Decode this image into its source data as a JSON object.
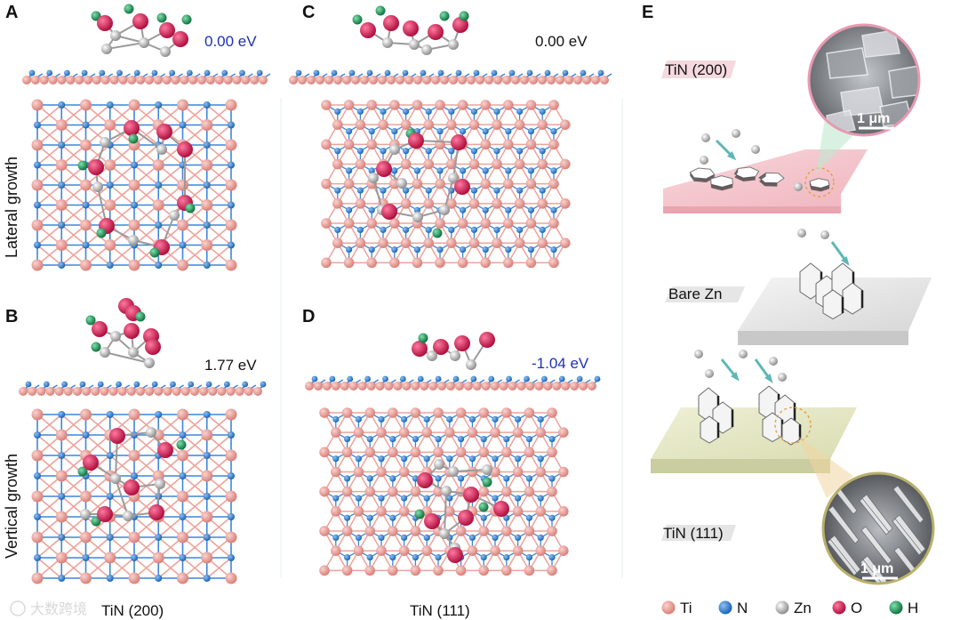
{
  "panels": {
    "A": {
      "label": "A",
      "energy": "0.00 eV",
      "energy_color": "#1f2fb8"
    },
    "B": {
      "label": "B",
      "energy": "1.77 eV",
      "energy_color": "#111111"
    },
    "C": {
      "label": "C",
      "energy": "0.00 eV",
      "energy_color": "#111111"
    },
    "D": {
      "label": "D",
      "energy": "-1.04 eV",
      "energy_color": "#1f2fb8"
    },
    "E": {
      "label": "E"
    }
  },
  "row_titles": {
    "top": "Lateral growth",
    "bottom": "Vertical growth"
  },
  "column_titles": {
    "left": "TiN (200)",
    "middle": "TiN (111)"
  },
  "schematic": {
    "tin200_label": "TiN (200)",
    "bare_label": "Bare Zn",
    "tin111_label": "TiN (111)",
    "scale_top": "1 μm",
    "scale_bottom": "1 μm"
  },
  "legend": [
    {
      "symbol": "Ti",
      "color": "#e8958e",
      "icon": "ti-sphere-icon"
    },
    {
      "symbol": "N",
      "color": "#2e7fd6",
      "icon": "n-sphere-icon"
    },
    {
      "symbol": "Zn",
      "color": "#b8b8b8",
      "icon": "zn-sphere-icon"
    },
    {
      "symbol": "O",
      "color": "#d81b5a",
      "icon": "o-sphere-icon"
    },
    {
      "symbol": "H",
      "color": "#1f9a5a",
      "icon": "h-sphere-icon"
    }
  ],
  "watermark": "大数跨境"
}
